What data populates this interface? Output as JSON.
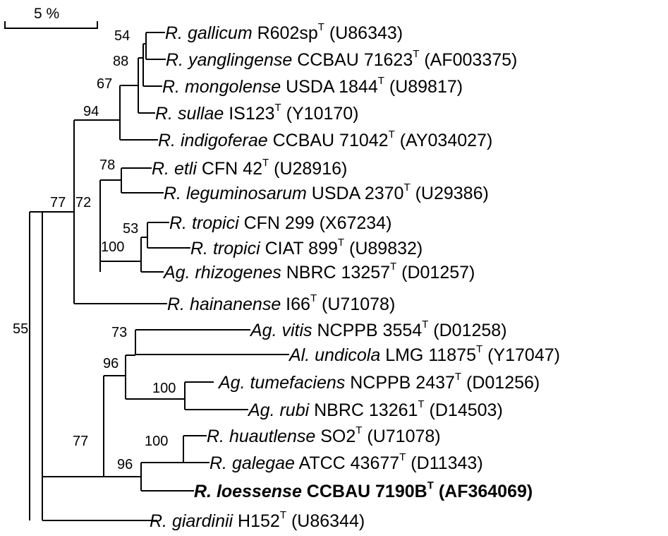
{
  "scale_bar": {
    "label": "5 %"
  },
  "taxa": [
    {
      "genus": "R.",
      "species": "gallicum",
      "strain": "R602sp",
      "type_strain": true,
      "accession": "(U86343)"
    },
    {
      "genus": "R.",
      "species": "yanglingense",
      "strain": "CCBAU 71623",
      "type_strain": true,
      "accession": "(AF003375)"
    },
    {
      "genus": "R.",
      "species": "mongolense",
      "strain": "USDA 1844",
      "type_strain": true,
      "accession": "(U89817)"
    },
    {
      "genus": "R.",
      "species": "sullae",
      "strain": "IS123",
      "type_strain": true,
      "accession": "(Y10170)"
    },
    {
      "genus": "R.",
      "species": "indigoferae",
      "strain": "CCBAU 71042",
      "type_strain": true,
      "accession": "(AY034027)"
    },
    {
      "genus": "R.",
      "species": "etli",
      "strain": "CFN 42",
      "type_strain": true,
      "accession": "(U28916)"
    },
    {
      "genus": "R.",
      "species": "leguminosarum",
      "strain": "USDA 2370",
      "type_strain": true,
      "accession": "(U29386)"
    },
    {
      "genus": "R.",
      "species": "tropici",
      "strain": "CFN 299",
      "type_strain": false,
      "accession": "(X67234)"
    },
    {
      "genus": "R.",
      "species": "tropici",
      "strain": "CIAT 899",
      "type_strain": true,
      "accession": "(U89832)"
    },
    {
      "genus": "Ag.",
      "species": "rhizogenes",
      "strain": "NBRC 13257",
      "type_strain": true,
      "accession": "(D01257)"
    },
    {
      "genus": "R.",
      "species": "hainanense",
      "strain": "I66",
      "type_strain": true,
      "accession": "(U71078)"
    },
    {
      "genus": "Ag.",
      "species": "vitis",
      "strain": "NCPPB 3554",
      "type_strain": true,
      "accession": "(D01258)"
    },
    {
      "genus": "Al.",
      "species": "undicola",
      "strain": "LMG 11875",
      "type_strain": true,
      "accession": "(Y17047)"
    },
    {
      "genus": "Ag.",
      "species": "tumefaciens",
      "strain": "NCPPB 2437",
      "type_strain": true,
      "accession": "(D01256)"
    },
    {
      "genus": "Ag.",
      "species": "rubi",
      "strain": "NBRC 13261",
      "type_strain": true,
      "accession": "(D14503)"
    },
    {
      "genus": "R.",
      "species": "huautlense",
      "strain": "SO2",
      "type_strain": true,
      "accession": "(U71078)"
    },
    {
      "genus": "R.",
      "species": "galegae",
      "strain": "ATCC 43677",
      "type_strain": true,
      "accession": "(D11343)"
    },
    {
      "genus": "R.",
      "species": "loessense",
      "strain": "CCBAU 7190B",
      "type_strain": true,
      "accession": "(AF364069)",
      "bold": true
    },
    {
      "genus": "R.",
      "species": "giardinii",
      "strain": "H152",
      "type_strain": true,
      "accession": "(U86344)"
    }
  ],
  "type_marker": "T",
  "bootstrap": [
    "54",
    "88",
    "67",
    "94",
    "78",
    "77",
    "72",
    "53",
    "100",
    "55",
    "73",
    "96",
    "100",
    "77",
    "100",
    "96"
  ]
}
